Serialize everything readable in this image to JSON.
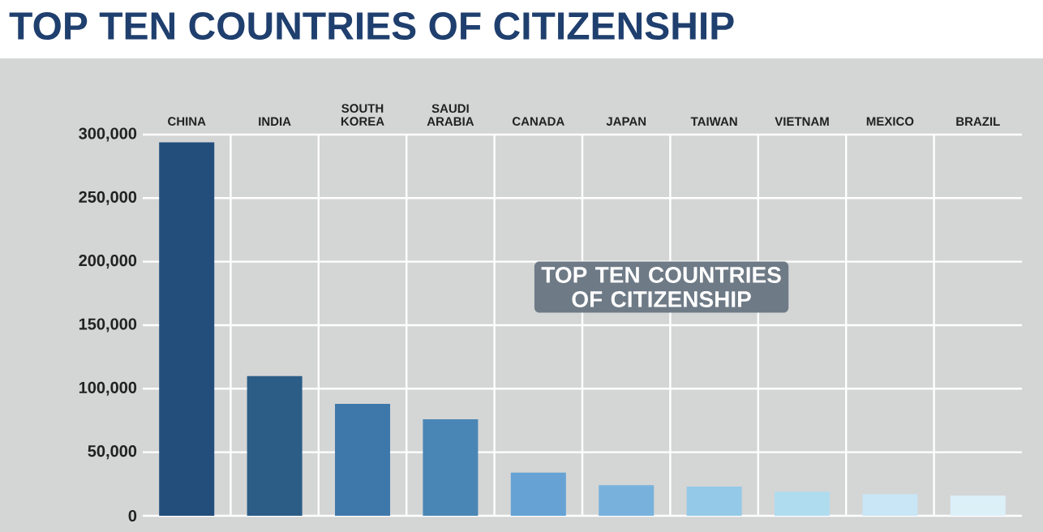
{
  "chart_data": {
    "type": "bar",
    "title": "TOP TEN COUNTRIES OF CITIZENSHIP",
    "categories": [
      "CHINA",
      "INDIA",
      "SOUTH KOREA",
      "SAUDI ARABIA",
      "CANADA",
      "JAPAN",
      "TAIWAN",
      "VIETNAM",
      "MEXICO",
      "BRAZIL"
    ],
    "values": [
      294000,
      110000,
      88000,
      76000,
      34000,
      24000,
      23000,
      19000,
      17000,
      16000
    ],
    "colors": [
      "#234e7c",
      "#2b5d87",
      "#3e78aa",
      "#4a86b5",
      "#66a3d4",
      "#78b2dc",
      "#95c9e8",
      "#b0dcf0",
      "#c8e6f5",
      "#dcf0f8"
    ],
    "ylim": [
      0,
      300000
    ],
    "yticks": [
      {
        "value": 0,
        "label": "0"
      },
      {
        "value": 50000,
        "label": "50,000"
      },
      {
        "value": 100000,
        "label": "100,000"
      },
      {
        "value": 150000,
        "label": "150,000"
      },
      {
        "value": 200000,
        "label": "200,000"
      },
      {
        "value": 250000,
        "label": "250,000"
      },
      {
        "value": 300000,
        "label": "300,000"
      }
    ],
    "grid": true,
    "annotations": [
      "TOP TEN COUNTRIES OF CITIZENSHIP"
    ]
  }
}
